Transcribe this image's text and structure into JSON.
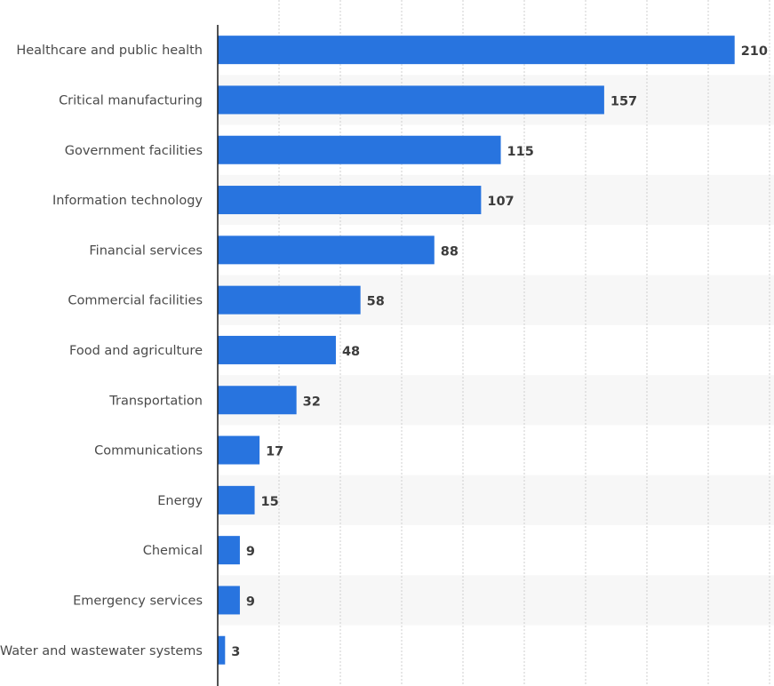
{
  "chart_data": {
    "type": "bar",
    "orientation": "horizontal",
    "categories": [
      "Healthcare and public health",
      "Critical manufacturing",
      "Government facilities",
      "Information technology",
      "Financial services",
      "Commercial facilities",
      "Food and agriculture",
      "Transportation",
      "Communications",
      "Energy",
      "Chemical",
      "Emergency services",
      "Water and wastewater systems"
    ],
    "values": [
      210,
      157,
      115,
      107,
      88,
      58,
      48,
      32,
      17,
      15,
      9,
      9,
      3
    ],
    "value_labels": [
      "210",
      "157",
      "115",
      "107",
      "88",
      "58",
      "48",
      "32",
      "17",
      "15",
      "9",
      "9",
      "3"
    ],
    "xlim": [
      0,
      225
    ],
    "grid": true,
    "bar_color": "#2874df",
    "band_color": "#f7f7f7",
    "gridline_color": "#cfcfcf"
  }
}
